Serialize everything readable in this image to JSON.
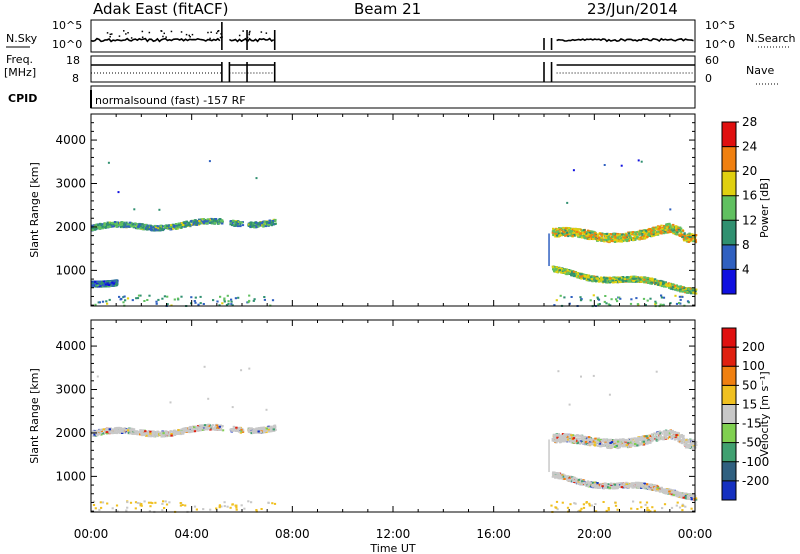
{
  "header": {
    "station": "Adak East (fitACF)",
    "beam": "Beam 21",
    "date": "23/Jun/2014"
  },
  "top_panels": {
    "left_nsky": "N.Sky",
    "left_freq": "Freq.",
    "left_freq_unit": "[MHz]",
    "left_cpid": "CPID",
    "right_nsearch": "N.Search",
    "right_nave": "Nave",
    "noise_ticks_left": [
      "10^5",
      "10^0"
    ],
    "noise_ticks_right": [
      "10^5",
      "10^0"
    ],
    "freq_ticks_left": [
      "18",
      "8"
    ],
    "freq_ticks_right": [
      "60",
      "0"
    ],
    "cpid_label": "normalsound (fast) -157 RF"
  },
  "chart_data": [
    {
      "type": "heatmap",
      "name": "power",
      "ylabel": "Slant Range [km]",
      "xlabel": "Time UT",
      "ylim": [
        180,
        4600
      ],
      "xlim": [
        0,
        24
      ],
      "yticks": [
        1000,
        2000,
        3000,
        4000
      ],
      "xticks": [
        "00:00",
        "04:00",
        "08:00",
        "12:00",
        "16:00",
        "20:00",
        "00:00"
      ],
      "colorbar": {
        "label": "Power [dB]",
        "ticks": [
          "4",
          "8",
          "12",
          "16",
          "20",
          "24",
          "28"
        ],
        "colors": [
          "#1010e0",
          "#3060c0",
          "#309070",
          "#60c060",
          "#e0d010",
          "#f08010",
          "#e01010"
        ]
      },
      "bands": [
        {
          "t0": 0.0,
          "t1": 7.3,
          "r_start": 2000,
          "r_end": 2150,
          "level": 0.45
        },
        {
          "t0": 18.3,
          "t1": 24.0,
          "r_start": 1850,
          "r_end": 1800,
          "level": 0.7
        },
        {
          "t0": 18.3,
          "t1": 24.0,
          "r_start": 1000,
          "r_end": 600,
          "level": 0.6
        },
        {
          "t0": 0.0,
          "t1": 1.0,
          "r_start": 700,
          "r_end": 800,
          "level": 0.3
        }
      ]
    },
    {
      "type": "heatmap",
      "name": "velocity",
      "ylabel": "Slant Range [km]",
      "xlabel": "Time UT",
      "ylim": [
        180,
        4600
      ],
      "xlim": [
        0,
        24
      ],
      "yticks": [
        1000,
        2000,
        3000,
        4000
      ],
      "xticks": [
        "00:00",
        "04:00",
        "08:00",
        "12:00",
        "16:00",
        "20:00",
        "00:00"
      ],
      "colorbar": {
        "label": "Velocity [m s⁻¹]",
        "ticks": [
          "200",
          "100",
          "50",
          "15",
          "-15",
          "-50",
          "-100",
          "-200"
        ],
        "colors": [
          "#1530c0",
          "#306080",
          "#40a070",
          "#80d050",
          "#c8c8c8",
          "#f0c020",
          "#f08010",
          "#e02010",
          "#e01010"
        ]
      },
      "bands": [
        {
          "t0": 0.0,
          "t1": 7.3,
          "r_start": 2000,
          "r_end": 2150,
          "level": 0.5
        },
        {
          "t0": 18.3,
          "t1": 24.0,
          "r_start": 1850,
          "r_end": 1800,
          "level": 0.5
        },
        {
          "t0": 18.3,
          "t1": 24.0,
          "r_start": 1000,
          "r_end": 600,
          "level": 0.5
        }
      ]
    }
  ]
}
